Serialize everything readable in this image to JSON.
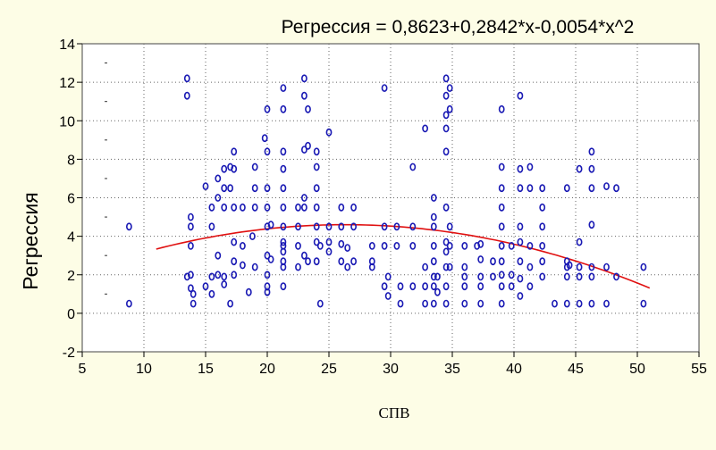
{
  "chart_data": {
    "type": "scatter",
    "title": "Регрессия = 0,8623+0,2842*x-0,0054*x^2",
    "xlabel": "СПВ",
    "ylabel": "Регрессия",
    "xlim": [
      5,
      55
    ],
    "ylim": [
      -2,
      14
    ],
    "xticks": [
      5,
      10,
      15,
      20,
      25,
      30,
      35,
      40,
      45,
      50,
      55
    ],
    "yticks": [
      -2,
      0,
      2,
      4,
      6,
      8,
      10,
      12,
      14
    ],
    "grid": true,
    "legend": "none",
    "colors": {
      "points": "#1a1ab4",
      "fit": "#e01010",
      "background": "#fdfde6",
      "plot_area": "#ffffff"
    },
    "fit": {
      "a": 0.8623,
      "b": 0.2842,
      "c": -0.0054,
      "x_range": [
        11,
        51
      ]
    },
    "points": [
      [
        8.8,
        4.5
      ],
      [
        8.8,
        0.5
      ],
      [
        13.5,
        12.2
      ],
      [
        13.5,
        11.3
      ],
      [
        13.5,
        1.9
      ],
      [
        13.8,
        5
      ],
      [
        13.8,
        4.5
      ],
      [
        13.8,
        3.5
      ],
      [
        13.8,
        2
      ],
      [
        13.8,
        1.3
      ],
      [
        14,
        1
      ],
      [
        14,
        0.5
      ],
      [
        15,
        6.6
      ],
      [
        15,
        1.4
      ],
      [
        15.5,
        5.5
      ],
      [
        15.5,
        4.5
      ],
      [
        15.5,
        1.9
      ],
      [
        15.5,
        1
      ],
      [
        16,
        7
      ],
      [
        16,
        6
      ],
      [
        16,
        2
      ],
      [
        16,
        3
      ],
      [
        16.5,
        7.5
      ],
      [
        16.5,
        6.5
      ],
      [
        16.5,
        5.5
      ],
      [
        16.5,
        1.9
      ],
      [
        16.5,
        1.5
      ],
      [
        17,
        7.6
      ],
      [
        17,
        6.5
      ],
      [
        17,
        0.5
      ],
      [
        17.3,
        8.4
      ],
      [
        17.3,
        7.5
      ],
      [
        17.3,
        5.5
      ],
      [
        17.3,
        3.7
      ],
      [
        17.3,
        2.7
      ],
      [
        17.3,
        2
      ],
      [
        18,
        5.5
      ],
      [
        18,
        3.5
      ],
      [
        18,
        2.5
      ],
      [
        18.5,
        1.1
      ],
      [
        18.8,
        4
      ],
      [
        19,
        7.6
      ],
      [
        19,
        6.5
      ],
      [
        19,
        5.5
      ],
      [
        19,
        2.4
      ],
      [
        19.8,
        9.1
      ],
      [
        20,
        10.6
      ],
      [
        20,
        8.4
      ],
      [
        20,
        6.5
      ],
      [
        20,
        5.5
      ],
      [
        20,
        4.5
      ],
      [
        20,
        3
      ],
      [
        20,
        2
      ],
      [
        20,
        1.4
      ],
      [
        20,
        1.1
      ],
      [
        20.3,
        4.6
      ],
      [
        20.3,
        2.8
      ],
      [
        21.3,
        11.7
      ],
      [
        21.3,
        10.6
      ],
      [
        21.3,
        8.4
      ],
      [
        21.3,
        7.5
      ],
      [
        21.3,
        6.5
      ],
      [
        21.3,
        5.5
      ],
      [
        21.3,
        4.5
      ],
      [
        21.3,
        3.7
      ],
      [
        21.3,
        3.5
      ],
      [
        21.3,
        3.2
      ],
      [
        21.3,
        2.7
      ],
      [
        21.3,
        2.4
      ],
      [
        21.3,
        1.4
      ],
      [
        22.5,
        5.5
      ],
      [
        22.5,
        4.5
      ],
      [
        22.5,
        3.5
      ],
      [
        22.5,
        2.4
      ],
      [
        23,
        12.2
      ],
      [
        23,
        11.3
      ],
      [
        23,
        8.5
      ],
      [
        23,
        6
      ],
      [
        23,
        5.5
      ],
      [
        23,
        3
      ],
      [
        23.3,
        8.7
      ],
      [
        23.3,
        2.7
      ],
      [
        23.3,
        10.6
      ],
      [
        24,
        8.4
      ],
      [
        24,
        7.6
      ],
      [
        24,
        6.5
      ],
      [
        24,
        5.5
      ],
      [
        24,
        4.5
      ],
      [
        24,
        3.7
      ],
      [
        24,
        2.7
      ],
      [
        24.3,
        3.5
      ],
      [
        24.3,
        0.5
      ],
      [
        25,
        9.4
      ],
      [
        25,
        4.5
      ],
      [
        25,
        3.7
      ],
      [
        25,
        3.2
      ],
      [
        26,
        5.5
      ],
      [
        26,
        4.5
      ],
      [
        26,
        3.6
      ],
      [
        26,
        2.7
      ],
      [
        26.5,
        3.4
      ],
      [
        26.5,
        2.4
      ],
      [
        27,
        5.5
      ],
      [
        27,
        4.5
      ],
      [
        27,
        2.7
      ],
      [
        28.5,
        3.5
      ],
      [
        28.5,
        2.7
      ],
      [
        28.5,
        2.4
      ],
      [
        29.5,
        11.7
      ],
      [
        29.5,
        4.5
      ],
      [
        29.5,
        3.5
      ],
      [
        29.5,
        1.4
      ],
      [
        29.8,
        1.9
      ],
      [
        29.8,
        0.9
      ],
      [
        30.5,
        4.5
      ],
      [
        30.5,
        3.5
      ],
      [
        30.8,
        1.4
      ],
      [
        30.8,
        0.5
      ],
      [
        31.8,
        7.6
      ],
      [
        31.8,
        4.5
      ],
      [
        31.8,
        3.5
      ],
      [
        31.8,
        1.4
      ],
      [
        32.8,
        9.6
      ],
      [
        32.8,
        2.4
      ],
      [
        32.8,
        1.4
      ],
      [
        32.8,
        0.5
      ],
      [
        33.5,
        6
      ],
      [
        33.5,
        5
      ],
      [
        33.5,
        4.5
      ],
      [
        33.5,
        3.5
      ],
      [
        33.5,
        2.7
      ],
      [
        33.5,
        1.9
      ],
      [
        33.5,
        1.4
      ],
      [
        33.5,
        0.5
      ],
      [
        33.8,
        1.9
      ],
      [
        33.8,
        1.1
      ],
      [
        34.5,
        12.2
      ],
      [
        34.5,
        11.3
      ],
      [
        34.5,
        10.3
      ],
      [
        34.5,
        9.6
      ],
      [
        34.5,
        8.4
      ],
      [
        34.5,
        5.5
      ],
      [
        34.5,
        3.7
      ],
      [
        34.5,
        3.2
      ],
      [
        34.5,
        2.4
      ],
      [
        34.5,
        1.4
      ],
      [
        34.5,
        0.5
      ],
      [
        34.8,
        11.7
      ],
      [
        34.8,
        10.6
      ],
      [
        34.8,
        4.5
      ],
      [
        34.8,
        3.5
      ],
      [
        34.8,
        2.4
      ],
      [
        36,
        3.5
      ],
      [
        36,
        2.4
      ],
      [
        36,
        1.9
      ],
      [
        36,
        1.4
      ],
      [
        36,
        0.5
      ],
      [
        37,
        3.5
      ],
      [
        37.3,
        3.6
      ],
      [
        37.3,
        2.8
      ],
      [
        37.3,
        1.9
      ],
      [
        37.3,
        1.4
      ],
      [
        37.3,
        0.5
      ],
      [
        38.3,
        2.7
      ],
      [
        38.3,
        1.9
      ],
      [
        39,
        10.6
      ],
      [
        39,
        7.6
      ],
      [
        39,
        6.5
      ],
      [
        39,
        5.5
      ],
      [
        39,
        4.5
      ],
      [
        39,
        3.5
      ],
      [
        39,
        2.7
      ],
      [
        39,
        2
      ],
      [
        39,
        1.4
      ],
      [
        39,
        0.5
      ],
      [
        39.8,
        3.5
      ],
      [
        39.8,
        2
      ],
      [
        39.8,
        1.4
      ],
      [
        40.5,
        11.3
      ],
      [
        40.5,
        7.5
      ],
      [
        40.5,
        6.5
      ],
      [
        40.5,
        4.5
      ],
      [
        40.5,
        3.7
      ],
      [
        40.5,
        2.7
      ],
      [
        40.5,
        1.8
      ],
      [
        40.5,
        0.9
      ],
      [
        41.3,
        7.6
      ],
      [
        41.3,
        6.5
      ],
      [
        41.3,
        3.5
      ],
      [
        41.3,
        2.4
      ],
      [
        41.3,
        1.4
      ],
      [
        42.3,
        6.5
      ],
      [
        42.3,
        5.5
      ],
      [
        42.3,
        4.5
      ],
      [
        42.3,
        3.5
      ],
      [
        42.3,
        2.7
      ],
      [
        42.3,
        1.9
      ],
      [
        43.3,
        0.5
      ],
      [
        44.3,
        6.5
      ],
      [
        44.3,
        2.7
      ],
      [
        44.3,
        2.4
      ],
      [
        44.3,
        1.9
      ],
      [
        44.3,
        0.5
      ],
      [
        44.5,
        2.5
      ],
      [
        45.3,
        7.5
      ],
      [
        45.3,
        3.7
      ],
      [
        45.3,
        2.4
      ],
      [
        45.3,
        1.9
      ],
      [
        45.3,
        0.5
      ],
      [
        46.3,
        8.4
      ],
      [
        46.3,
        7.5
      ],
      [
        46.3,
        6.5
      ],
      [
        46.3,
        4.6
      ],
      [
        46.3,
        2.4
      ],
      [
        46.3,
        1.9
      ],
      [
        46.3,
        0.5
      ],
      [
        47.5,
        6.6
      ],
      [
        47.5,
        2.4
      ],
      [
        47.5,
        0.5
      ],
      [
        48.3,
        6.5
      ],
      [
        48.3,
        1.9
      ],
      [
        50.5,
        2.4
      ],
      [
        50.5,
        0.5
      ]
    ]
  }
}
